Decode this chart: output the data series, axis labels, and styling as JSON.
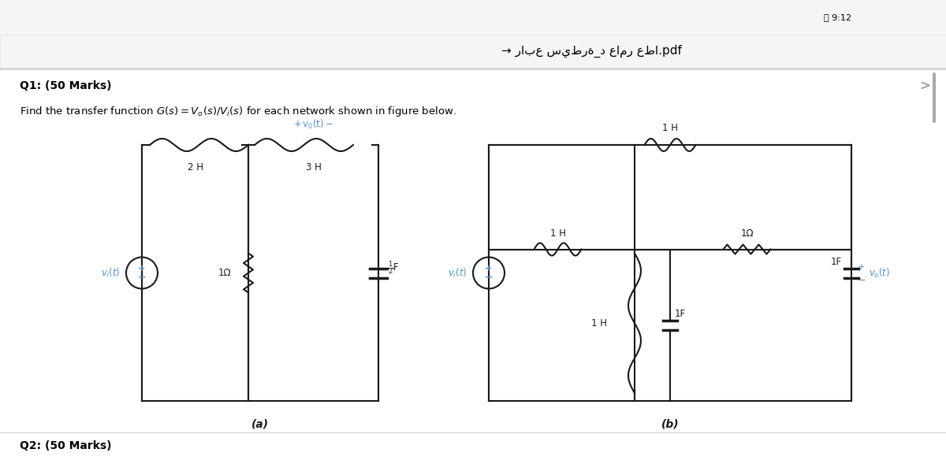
{
  "bg_color": "#ffffff",
  "header_text": "→ رابع سيطرة_د عامر عطا.pdf",
  "time_text": "ค 9:12",
  "q1_text": "Q1: (50 Marks)",
  "problem_text": "Find the transfer function G(s) = V₀(s)/Vᴵ(s) for each network shown in figure below.",
  "label_a": "(a)",
  "label_b": "(b)",
  "q2_text": "Q2: (50 Marks)",
  "text_color": "#000000",
  "blue_color": "#4a90d9",
  "circuit_color": "#1a1a1a",
  "fig_width": 12.0,
  "fig_height": 5.84
}
